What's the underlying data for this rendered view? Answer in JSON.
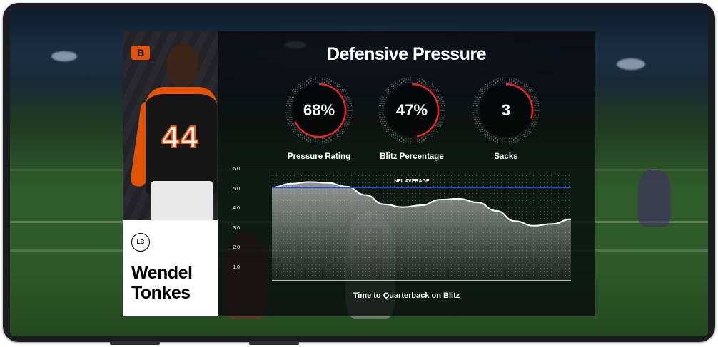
{
  "team": {
    "logo_text": "B"
  },
  "player": {
    "number": "44",
    "position": "LB",
    "first_name": "Wendel",
    "last_name": "Tonkes"
  },
  "panel": {
    "title": "Defensive Pressure",
    "stats": [
      {
        "value": "68%",
        "label": "Pressure Rating",
        "fraction": 0.68
      },
      {
        "value": "47%",
        "label": "Blitz Percentage",
        "fraction": 0.47
      },
      {
        "value": "3",
        "label": "Sacks",
        "fraction": 0.3
      }
    ],
    "gauge_color": "#e8262b"
  },
  "chart_data": {
    "type": "area",
    "xlabel": "Time to Quarterback on Blitz",
    "ylabel": "",
    "y_ticks": [
      "6.0",
      "5.0",
      "4.0",
      "3.0",
      "2.0",
      "1.0"
    ],
    "ylim": [
      0,
      6
    ],
    "reference_line": {
      "label": "NFL AVERAGE",
      "value": 5.0,
      "color": "#2a46d8"
    },
    "series": [
      {
        "x": [
          0,
          1,
          2,
          3,
          4,
          5,
          6,
          7,
          8,
          9,
          10,
          11,
          12,
          13,
          14,
          15,
          16
        ],
        "values": [
          5.0,
          5.2,
          5.3,
          5.25,
          5.05,
          4.6,
          4.1,
          3.95,
          4.05,
          4.35,
          4.4,
          4.2,
          3.75,
          3.2,
          2.95,
          3.05,
          3.3
        ]
      }
    ],
    "grid": false
  }
}
